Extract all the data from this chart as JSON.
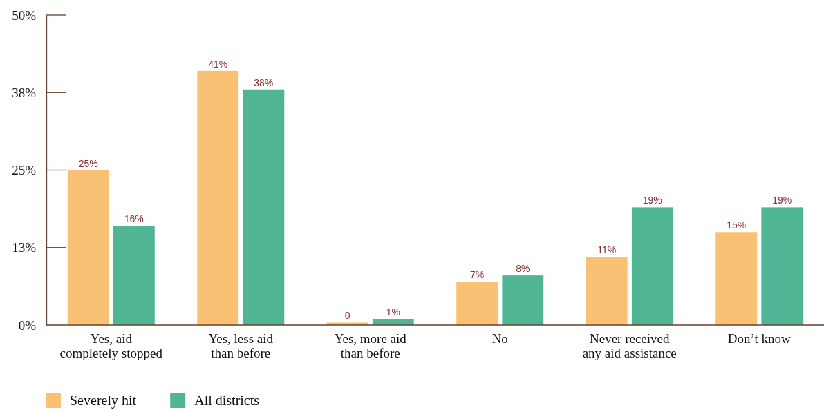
{
  "chart_data": {
    "type": "bar",
    "categories": [
      "Yes, aid\ncompletely stopped",
      "Yes, less aid\nthan before",
      "Yes, more aid\nthan before",
      "No",
      "Never received\nany aid assistance",
      "Don’t know"
    ],
    "series": [
      {
        "name": "Severely hit",
        "color": "#f8c173",
        "values": [
          25,
          41,
          0.4,
          7,
          11,
          15
        ],
        "value_labels": [
          "25%",
          "41%",
          "0",
          "7%",
          "11%",
          "15%"
        ]
      },
      {
        "name": "All districts",
        "color": "#50b595",
        "values": [
          16,
          38,
          1,
          8,
          19,
          19
        ],
        "value_labels": [
          "16%",
          "38%",
          "1%",
          "8%",
          "19%",
          "19%"
        ]
      }
    ],
    "ylim": [
      0,
      50
    ],
    "yticks": [
      {
        "value": 0,
        "label": "0%"
      },
      {
        "value": 12.5,
        "label": "13%"
      },
      {
        "value": 25,
        "label": "25%"
      },
      {
        "value": 37.5,
        "label": "38%"
      },
      {
        "value": 50,
        "label": "50%"
      }
    ],
    "legend": "bottom"
  }
}
